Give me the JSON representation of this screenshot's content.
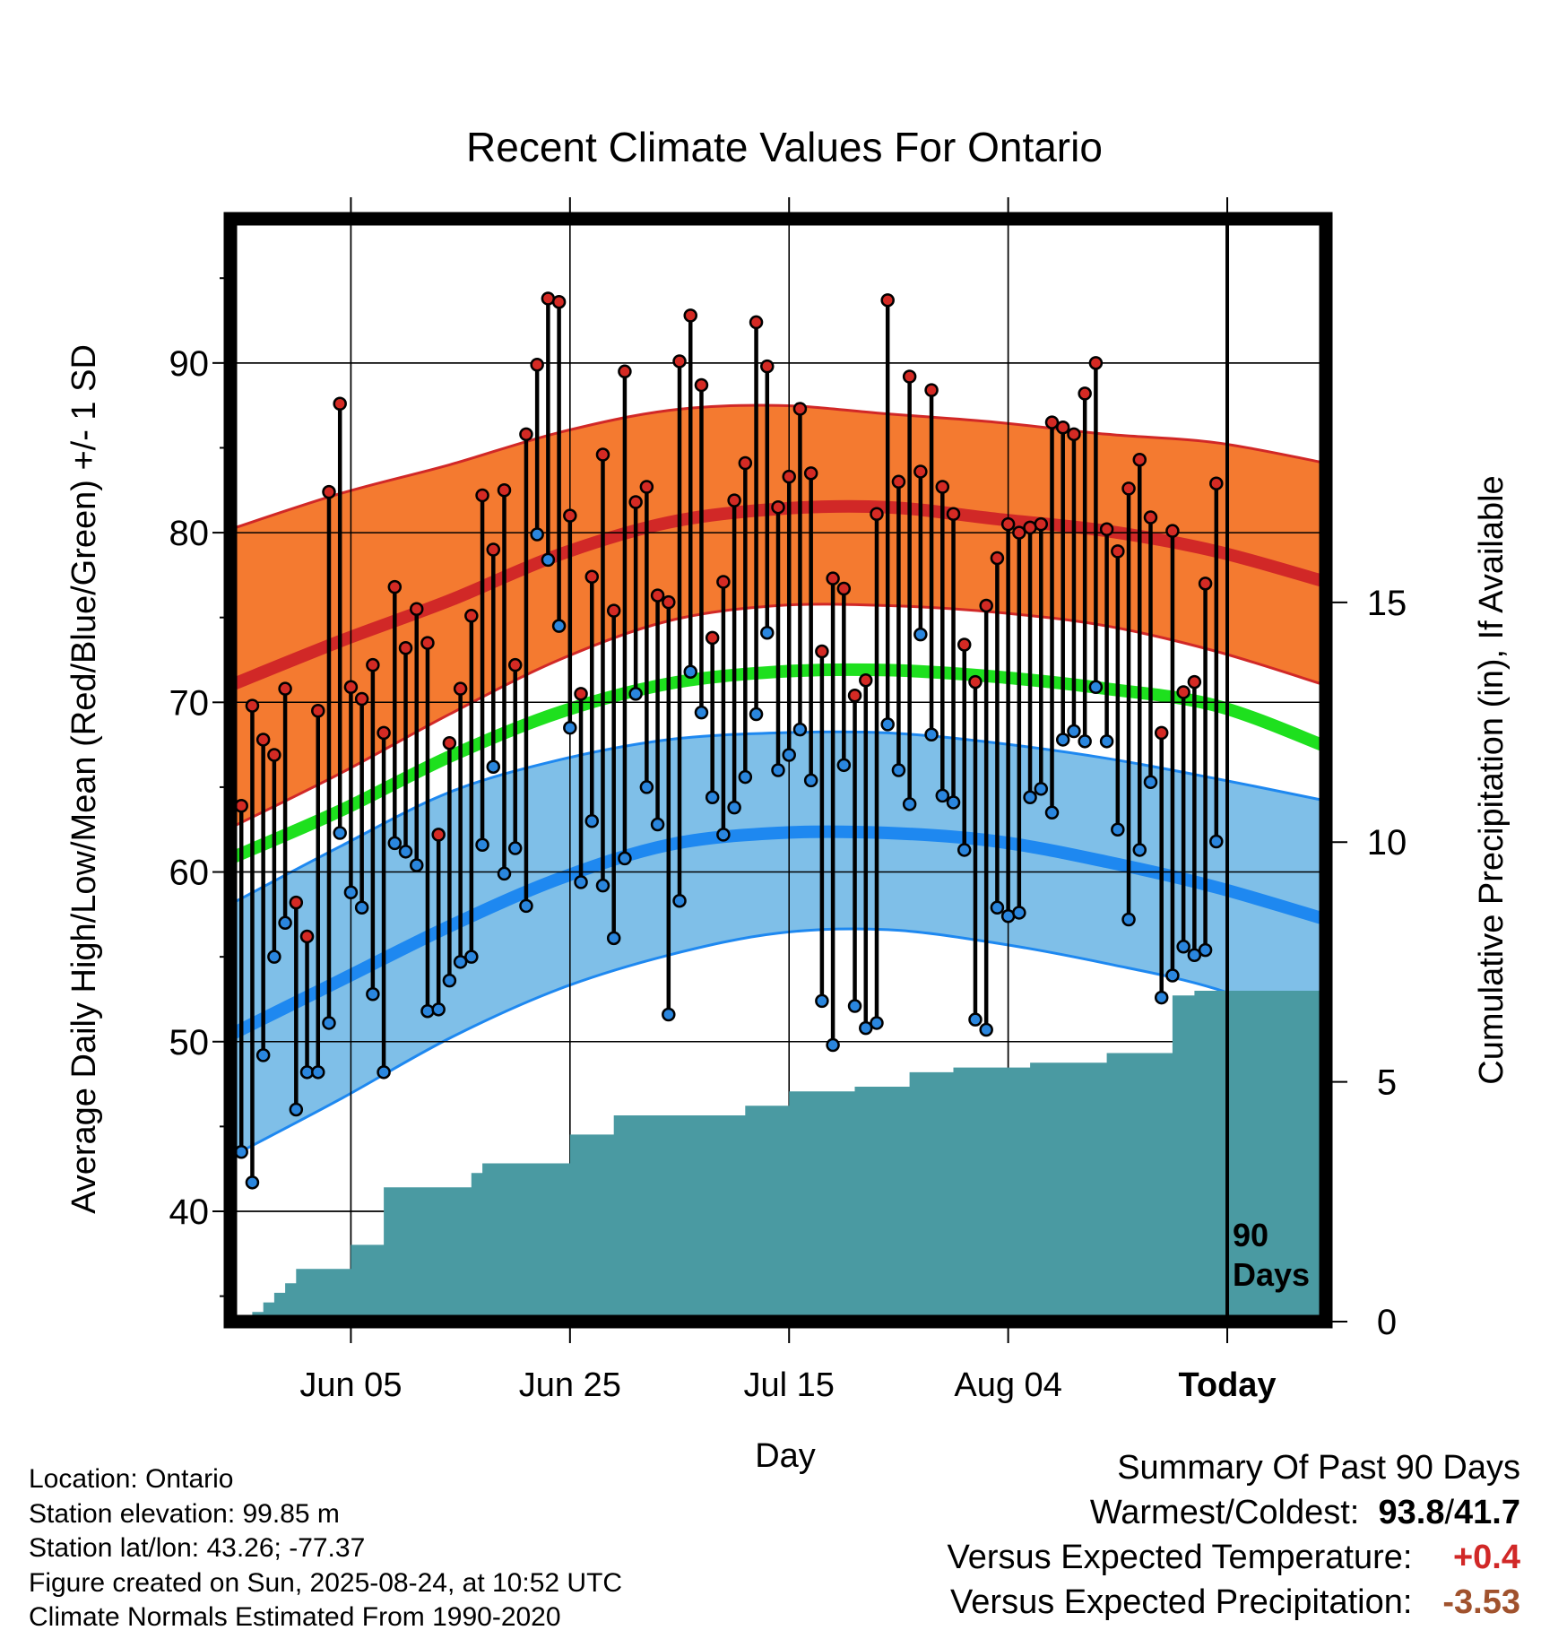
{
  "chart_data": {
    "type": "line",
    "title": "Recent Climate Values For Ontario",
    "xlabel": "Day",
    "ylabel": "Average Daily High/Low/Mean (Red/Blue/Green) +/- 1 SD",
    "y2label": "Cumulative Precipitation (in), If Available",
    "x_ticks": [
      "Jun 05",
      "Jun 25",
      "Jul 15",
      "Aug 04",
      "Today"
    ],
    "x_tick_days": [
      11,
      31,
      51,
      71,
      91
    ],
    "today_day": 91,
    "today_label": "90 Days",
    "y_ticks": [
      40,
      50,
      60,
      70,
      80,
      90
    ],
    "y2_ticks": [
      0,
      5,
      10,
      15
    ],
    "grid": true,
    "normals": {
      "high_mean": [
        [
          0,
          71.0
        ],
        [
          10,
          73.6
        ],
        [
          20,
          76.0
        ],
        [
          30,
          78.7
        ],
        [
          40,
          80.6
        ],
        [
          50,
          81.4
        ],
        [
          60,
          81.5
        ],
        [
          70,
          80.8
        ],
        [
          80,
          80.1
        ],
        [
          90,
          78.9
        ],
        [
          100,
          77.1
        ]
      ],
      "high_sd_top": [
        [
          0,
          80.2
        ],
        [
          10,
          82.3
        ],
        [
          20,
          84.0
        ],
        [
          30,
          85.9
        ],
        [
          40,
          87.2
        ],
        [
          50,
          87.5
        ],
        [
          60,
          87.0
        ],
        [
          70,
          86.5
        ],
        [
          80,
          85.8
        ],
        [
          90,
          85.3
        ],
        [
          100,
          84.1
        ]
      ],
      "high_sd_bottom": [
        [
          0,
          62.6
        ],
        [
          10,
          65.8
        ],
        [
          20,
          69.3
        ],
        [
          30,
          72.5
        ],
        [
          40,
          74.8
        ],
        [
          50,
          75.7
        ],
        [
          60,
          75.7
        ],
        [
          70,
          75.3
        ],
        [
          80,
          74.5
        ],
        [
          90,
          73.0
        ],
        [
          100,
          71.0
        ]
      ],
      "mean": [
        [
          0,
          60.8
        ],
        [
          10,
          63.6
        ],
        [
          20,
          66.8
        ],
        [
          30,
          69.4
        ],
        [
          40,
          71.1
        ],
        [
          50,
          71.8
        ],
        [
          60,
          71.9
        ],
        [
          70,
          71.5
        ],
        [
          80,
          70.8
        ],
        [
          90,
          69.8
        ],
        [
          100,
          67.4
        ]
      ],
      "low_mean": [
        [
          0,
          50.4
        ],
        [
          10,
          53.6
        ],
        [
          20,
          56.8
        ],
        [
          30,
          59.6
        ],
        [
          40,
          61.6
        ],
        [
          50,
          62.3
        ],
        [
          60,
          62.3
        ],
        [
          70,
          61.8
        ],
        [
          80,
          60.6
        ],
        [
          90,
          59.1
        ],
        [
          100,
          57.2
        ]
      ],
      "low_sd_top": [
        [
          0,
          58.1
        ],
        [
          10,
          61.5
        ],
        [
          20,
          64.7
        ],
        [
          30,
          66.6
        ],
        [
          40,
          67.8
        ],
        [
          50,
          68.2
        ],
        [
          60,
          68.2
        ],
        [
          70,
          67.6
        ],
        [
          80,
          66.7
        ],
        [
          90,
          65.5
        ],
        [
          100,
          64.2
        ]
      ],
      "low_sd_bottom": [
        [
          0,
          43.2
        ],
        [
          10,
          46.6
        ],
        [
          20,
          50.2
        ],
        [
          30,
          53.1
        ],
        [
          40,
          55.1
        ],
        [
          50,
          56.4
        ],
        [
          60,
          56.6
        ],
        [
          70,
          55.8
        ],
        [
          80,
          54.6
        ],
        [
          90,
          53.1
        ],
        [
          100,
          50.6
        ]
      ]
    },
    "days": [
      {
        "day": 1,
        "high": 63.9,
        "low": 43.5
      },
      {
        "day": 2,
        "high": 69.8,
        "low": 41.7
      },
      {
        "day": 3,
        "high": 67.8,
        "low": 49.2
      },
      {
        "day": 4,
        "high": 66.9,
        "low": 55.0
      },
      {
        "day": 5,
        "high": 70.8,
        "low": 57.0
      },
      {
        "day": 6,
        "high": 58.2,
        "low": 46.0
      },
      {
        "day": 7,
        "high": 56.2,
        "low": 48.2
      },
      {
        "day": 8,
        "high": 69.5,
        "low": 48.2
      },
      {
        "day": 9,
        "high": 82.4,
        "low": 51.1
      },
      {
        "day": 10,
        "high": 87.6,
        "low": 62.3
      },
      {
        "day": 11,
        "high": 70.9,
        "low": 58.8
      },
      {
        "day": 12,
        "high": 70.2,
        "low": 57.9
      },
      {
        "day": 13,
        "high": 72.2,
        "low": 52.8
      },
      {
        "day": 14,
        "high": 68.2,
        "low": 48.2
      },
      {
        "day": 15,
        "high": 76.8,
        "low": 61.7
      },
      {
        "day": 16,
        "high": 73.2,
        "low": 61.2
      },
      {
        "day": 17,
        "high": 75.5,
        "low": 60.4
      },
      {
        "day": 18,
        "high": 73.5,
        "low": 51.8
      },
      {
        "day": 19,
        "high": 62.2,
        "low": 51.9
      },
      {
        "day": 20,
        "high": 67.6,
        "low": 53.6
      },
      {
        "day": 21,
        "high": 70.8,
        "low": 54.7
      },
      {
        "day": 22,
        "high": 75.1,
        "low": 55.0
      },
      {
        "day": 23,
        "high": 82.2,
        "low": 61.6
      },
      {
        "day": 24,
        "high": 79.0,
        "low": 66.2
      },
      {
        "day": 25,
        "high": 82.5,
        "low": 59.9
      },
      {
        "day": 26,
        "high": 72.2,
        "low": 61.4
      },
      {
        "day": 27,
        "high": 85.8,
        "low": 58.0
      },
      {
        "day": 28,
        "high": 89.9,
        "low": 79.9
      },
      {
        "day": 29,
        "high": 93.8,
        "low": 78.4
      },
      {
        "day": 30,
        "high": 93.6,
        "low": 74.5
      },
      {
        "day": 31,
        "high": 81.0,
        "low": 68.5
      },
      {
        "day": 32,
        "high": 70.5,
        "low": 59.4
      },
      {
        "day": 33,
        "high": 77.4,
        "low": 63.0
      },
      {
        "day": 34,
        "high": 84.6,
        "low": 59.2
      },
      {
        "day": 35,
        "high": 75.4,
        "low": 56.1
      },
      {
        "day": 36,
        "high": 89.5,
        "low": 60.8
      },
      {
        "day": 37,
        "high": 81.8,
        "low": 70.5
      },
      {
        "day": 38,
        "high": 82.7,
        "low": 65.0
      },
      {
        "day": 39,
        "high": 76.3,
        "low": 62.8
      },
      {
        "day": 40,
        "high": 75.9,
        "low": 51.6
      },
      {
        "day": 41,
        "high": 90.1,
        "low": 58.3
      },
      {
        "day": 42,
        "high": 92.8,
        "low": 71.8
      },
      {
        "day": 43,
        "high": 88.7,
        "low": 69.4
      },
      {
        "day": 44,
        "high": 73.8,
        "low": 64.4
      },
      {
        "day": 45,
        "high": 77.1,
        "low": 62.2
      },
      {
        "day": 46,
        "high": 81.9,
        "low": 63.8
      },
      {
        "day": 47,
        "high": 84.1,
        "low": 65.6
      },
      {
        "day": 48,
        "high": 92.4,
        "low": 69.3
      },
      {
        "day": 49,
        "high": 89.8,
        "low": 74.1
      },
      {
        "day": 50,
        "high": 81.5,
        "low": 66.0
      },
      {
        "day": 51,
        "high": 83.3,
        "low": 66.9
      },
      {
        "day": 52,
        "high": 87.3,
        "low": 68.4
      },
      {
        "day": 53,
        "high": 83.5,
        "low": 65.4
      },
      {
        "day": 54,
        "high": 73.0,
        "low": 52.4
      },
      {
        "day": 55,
        "high": 77.3,
        "low": 49.8
      },
      {
        "day": 56,
        "high": 76.7,
        "low": 66.3
      },
      {
        "day": 57,
        "high": 70.4,
        "low": 52.1
      },
      {
        "day": 58,
        "high": 71.3,
        "low": 50.8
      },
      {
        "day": 59,
        "high": 81.1,
        "low": 51.1
      },
      {
        "day": 60,
        "high": 93.7,
        "low": 68.7
      },
      {
        "day": 61,
        "high": 83.0,
        "low": 66.0
      },
      {
        "day": 62,
        "high": 89.2,
        "low": 64.0
      },
      {
        "day": 63,
        "high": 83.6,
        "low": 74.0
      },
      {
        "day": 64,
        "high": 88.4,
        "low": 68.1
      },
      {
        "day": 65,
        "high": 82.7,
        "low": 64.5
      },
      {
        "day": 66,
        "high": 81.1,
        "low": 64.1
      },
      {
        "day": 67,
        "high": 73.4,
        "low": 61.3
      },
      {
        "day": 68,
        "high": 71.2,
        "low": 51.3
      },
      {
        "day": 69,
        "high": 75.7,
        "low": 50.7
      },
      {
        "day": 70,
        "high": 78.5,
        "low": 57.9
      },
      {
        "day": 71,
        "high": 80.5,
        "low": 57.4
      },
      {
        "day": 72,
        "high": 80.0,
        "low": 57.6
      },
      {
        "day": 73,
        "high": 80.3,
        "low": 64.4
      },
      {
        "day": 74,
        "high": 80.5,
        "low": 64.9
      },
      {
        "day": 75,
        "high": 86.5,
        "low": 63.5
      },
      {
        "day": 76,
        "high": 86.2,
        "low": 67.8
      },
      {
        "day": 77,
        "high": 85.8,
        "low": 68.3
      },
      {
        "day": 78,
        "high": 88.2,
        "low": 67.7
      },
      {
        "day": 79,
        "high": 90.0,
        "low": 70.9
      },
      {
        "day": 80,
        "high": 80.2,
        "low": 67.7
      },
      {
        "day": 81,
        "high": 78.9,
        "low": 62.5
      },
      {
        "day": 82,
        "high": 82.6,
        "low": 57.2
      },
      {
        "day": 83,
        "high": 84.3,
        "low": 61.3
      },
      {
        "day": 84,
        "high": 80.9,
        "low": 65.3
      },
      {
        "day": 85,
        "high": 68.2,
        "low": 52.6
      },
      {
        "day": 86,
        "high": 80.1,
        "low": 53.9
      },
      {
        "day": 87,
        "high": 70.6,
        "low": 55.6
      },
      {
        "day": 88,
        "high": 71.2,
        "low": 55.1
      },
      {
        "day": 89,
        "high": 77.0,
        "low": 55.4
      },
      {
        "day": 90,
        "high": 82.9,
        "low": 61.8
      }
    ],
    "precip_cumulative": [
      [
        0,
        0.0
      ],
      [
        1,
        0.0
      ],
      [
        2,
        0.2
      ],
      [
        3,
        0.4
      ],
      [
        4,
        0.6
      ],
      [
        5,
        0.8
      ],
      [
        6,
        1.1
      ],
      [
        7,
        1.1
      ],
      [
        8,
        1.1
      ],
      [
        9,
        1.1
      ],
      [
        10,
        1.1
      ],
      [
        11,
        1.6
      ],
      [
        12,
        1.6
      ],
      [
        13,
        1.6
      ],
      [
        14,
        2.8
      ],
      [
        15,
        2.8
      ],
      [
        16,
        2.8
      ],
      [
        17,
        2.8
      ],
      [
        18,
        2.8
      ],
      [
        19,
        2.8
      ],
      [
        20,
        2.8
      ],
      [
        21,
        2.8
      ],
      [
        22,
        3.1
      ],
      [
        23,
        3.3
      ],
      [
        24,
        3.3
      ],
      [
        25,
        3.3
      ],
      [
        26,
        3.3
      ],
      [
        27,
        3.3
      ],
      [
        28,
        3.3
      ],
      [
        29,
        3.3
      ],
      [
        30,
        3.3
      ],
      [
        31,
        3.9
      ],
      [
        32,
        3.9
      ],
      [
        33,
        3.9
      ],
      [
        34,
        3.9
      ],
      [
        35,
        4.3
      ],
      [
        36,
        4.3
      ],
      [
        37,
        4.3
      ],
      [
        38,
        4.3
      ],
      [
        39,
        4.3
      ],
      [
        40,
        4.3
      ],
      [
        41,
        4.3
      ],
      [
        42,
        4.3
      ],
      [
        43,
        4.3
      ],
      [
        44,
        4.3
      ],
      [
        45,
        4.3
      ],
      [
        46,
        4.3
      ],
      [
        47,
        4.5
      ],
      [
        48,
        4.5
      ],
      [
        49,
        4.5
      ],
      [
        50,
        4.5
      ],
      [
        51,
        4.8
      ],
      [
        52,
        4.8
      ],
      [
        53,
        4.8
      ],
      [
        54,
        4.8
      ],
      [
        55,
        4.8
      ],
      [
        56,
        4.8
      ],
      [
        57,
        4.9
      ],
      [
        58,
        4.9
      ],
      [
        59,
        4.9
      ],
      [
        60,
        4.9
      ],
      [
        61,
        4.9
      ],
      [
        62,
        5.2
      ],
      [
        63,
        5.2
      ],
      [
        64,
        5.2
      ],
      [
        65,
        5.2
      ],
      [
        66,
        5.3
      ],
      [
        67,
        5.3
      ],
      [
        68,
        5.3
      ],
      [
        69,
        5.3
      ],
      [
        70,
        5.3
      ],
      [
        71,
        5.3
      ],
      [
        72,
        5.3
      ],
      [
        73,
        5.4
      ],
      [
        74,
        5.4
      ],
      [
        75,
        5.4
      ],
      [
        76,
        5.4
      ],
      [
        77,
        5.4
      ],
      [
        78,
        5.4
      ],
      [
        79,
        5.4
      ],
      [
        80,
        5.6
      ],
      [
        81,
        5.6
      ],
      [
        82,
        5.6
      ],
      [
        83,
        5.6
      ],
      [
        84,
        5.6
      ],
      [
        85,
        5.6
      ],
      [
        86,
        6.8
      ],
      [
        87,
        6.8
      ],
      [
        88,
        6.9
      ],
      [
        89,
        6.9
      ],
      [
        90,
        6.9
      ],
      [
        91,
        6.9
      ],
      [
        100,
        6.9
      ]
    ]
  },
  "footer": {
    "location": "Location: Ontario",
    "elevation": "Station elevation: 99.85 m",
    "latlon": "Station lat/lon: 43.26; -77.37",
    "created": "Figure created on Sun, 2025-08-24, at 10:52 UTC",
    "normals": "Climate Normals Estimated From 1990-2020"
  },
  "summary": {
    "heading": "Summary Of Past 90 Days",
    "warm_cold_label": "Warmest/Coldest:",
    "warmest": "93.8",
    "separator": "/",
    "coldest": "41.7",
    "temp_label": "Versus Expected Temperature:",
    "temp_value": "+0.4",
    "precip_label": "Versus Expected Precipitation:",
    "precip_value": "-3.53"
  },
  "colors": {
    "high_band": "#f47a30",
    "high_line": "#d12827",
    "mean_line": "#1ee01e",
    "low_band": "#7fbfe8",
    "low_line": "#1e88f0",
    "precip": "#4a9aa2",
    "high_dot": "#d42a24",
    "low_dot": "#2a86de",
    "temp_anomaly": "#d12827",
    "precip_anomaly": "#a0522d"
  }
}
